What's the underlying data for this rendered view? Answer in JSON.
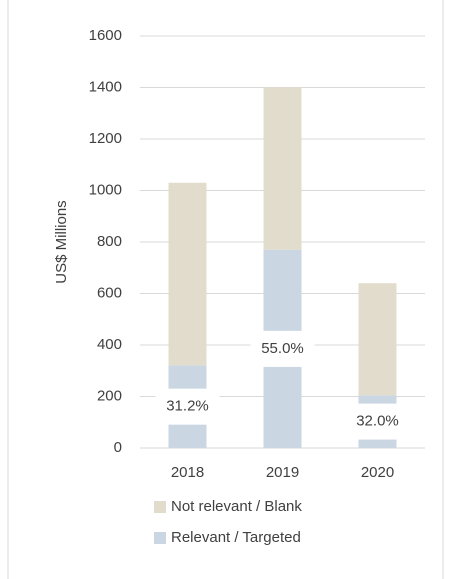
{
  "chart_data": {
    "type": "stacked_bar",
    "y_label": "US$ Millions",
    "categories": [
      "2018",
      "2019",
      "2020"
    ],
    "series": [
      {
        "name": "Relevant / Targeted",
        "color": "#cad6e2",
        "values": [
          321,
          770,
          205
        ]
      },
      {
        "name": "Not relevant / Blank",
        "color": "#e2dccc",
        "values": [
          709,
          630,
          435
        ]
      }
    ],
    "share_labels": [
      "31.2%",
      "55.0%",
      "32.0%"
    ],
    "ylim": [
      0,
      1600
    ],
    "yticks": [
      0,
      200,
      400,
      600,
      800,
      1000,
      1200,
      1400,
      1600
    ],
    "grid": true,
    "legend": "bottom"
  }
}
